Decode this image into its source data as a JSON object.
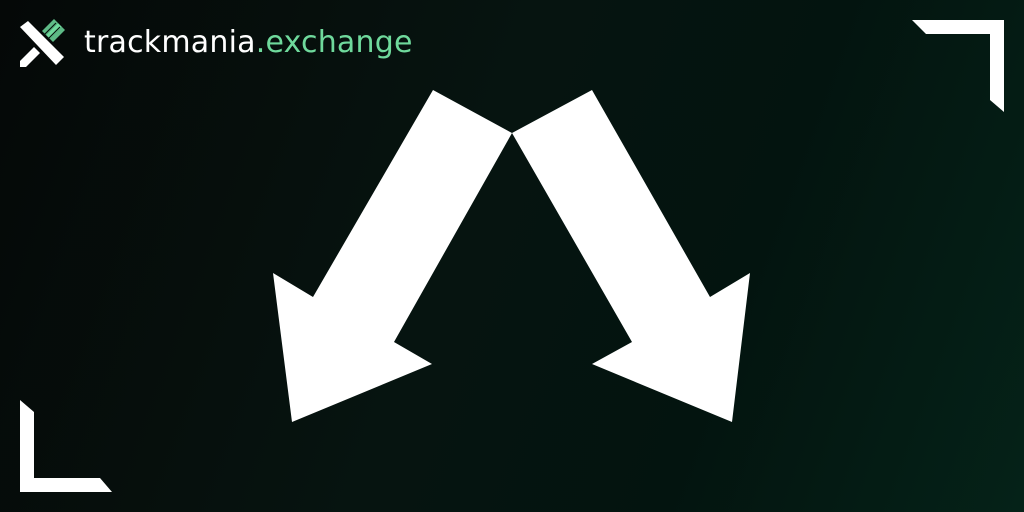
{
  "brand": {
    "name_main": "trackmania",
    "name_dot": ".",
    "name_accent": "exchange",
    "logo_icon": "tmx-x-logo-icon"
  },
  "colors": {
    "background_dark": "#050807",
    "background_green": "#052218",
    "accent": "#6fd99c",
    "foreground": "#ffffff"
  },
  "graphic": {
    "left_arrow_icon": "arrow-down-left-icon",
    "right_arrow_icon": "arrow-down-right-icon",
    "corner_icons": [
      "corner-bracket-top-right-icon",
      "corner-bracket-bottom-left-icon"
    ]
  }
}
